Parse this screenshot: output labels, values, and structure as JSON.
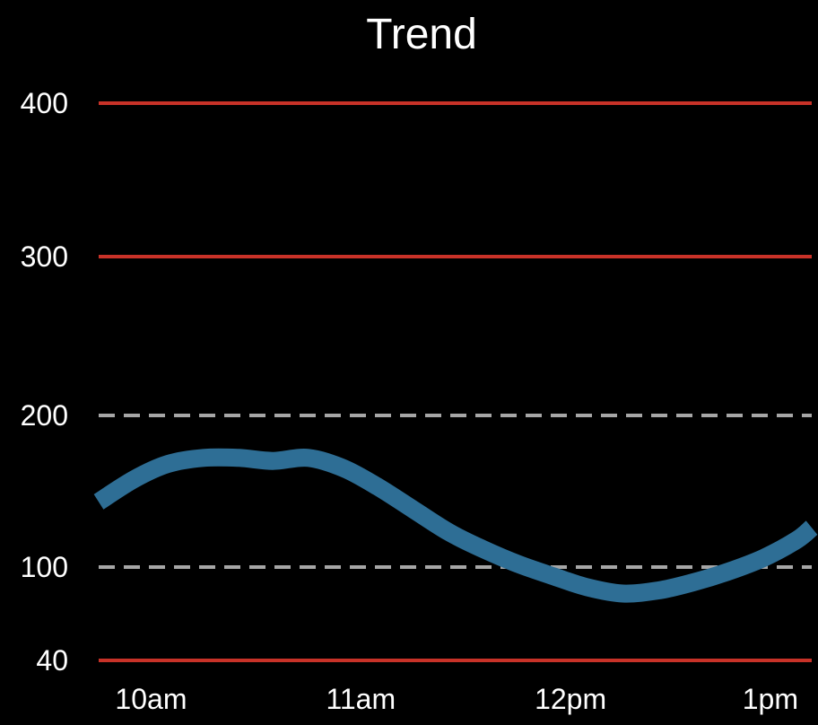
{
  "chart_data": {
    "type": "line",
    "title": "Trend",
    "xlabel": "",
    "ylabel": "",
    "x_tick_labels": [
      "10am",
      "11am",
      "12pm",
      "1pm"
    ],
    "x_ticks_hours": [
      10,
      11,
      12,
      13
    ],
    "xlim_hours": [
      9.75,
      13.15
    ],
    "y_ticks": [
      40,
      100,
      200,
      300,
      400
    ],
    "ylim": [
      40,
      400
    ],
    "reference_lines": [
      {
        "value": 400,
        "style": "solid",
        "color": "#c83228"
      },
      {
        "value": 300,
        "style": "solid",
        "color": "#c83228"
      },
      {
        "value": 200,
        "style": "dashed",
        "color": "#a6a6a6"
      },
      {
        "value": 100,
        "style": "dashed",
        "color": "#a6a6a6"
      },
      {
        "value": 40,
        "style": "solid",
        "color": "#c83228"
      }
    ],
    "series": [
      {
        "color": "#2e6e95",
        "x_hours": [
          9.75,
          9.92,
          10.08,
          10.25,
          10.42,
          10.58,
          10.75,
          10.92,
          11.08,
          11.25,
          11.42,
          11.58,
          11.75,
          11.92,
          12.08,
          12.25,
          12.42,
          12.58,
          12.75,
          12.92,
          13.08,
          13.15
        ],
        "values": [
          143,
          158,
          168,
          172,
          172,
          170,
          172,
          165,
          153,
          138,
          123,
          112,
          102,
          94,
          87,
          83,
          85,
          90,
          97,
          106,
          118,
          126
        ]
      }
    ]
  }
}
